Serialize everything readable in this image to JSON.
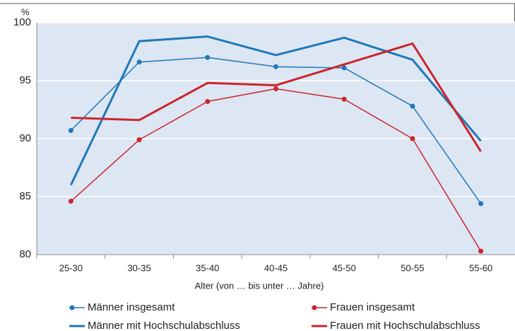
{
  "chart_data": {
    "type": "line",
    "y_unit_label": "%",
    "x_label": "Alter (von … bis unter … Jahre)",
    "categories": [
      "25-30",
      "30-35",
      "35-40",
      "40-45",
      "45-50",
      "50-55",
      "55-60"
    ],
    "series": [
      {
        "name": "Männer insgesamt",
        "color": "#1f78b8",
        "markers": true,
        "values": [
          90.7,
          96.6,
          97.0,
          96.2,
          96.1,
          92.8,
          84.4
        ]
      },
      {
        "name": "Frauen insgesamt",
        "color": "#c9262d",
        "markers": true,
        "values": [
          84.6,
          89.9,
          93.2,
          94.3,
          93.4,
          90.0,
          80.3
        ]
      },
      {
        "name": "Männer mit Hochschulabschluss",
        "color": "#1f78b8",
        "markers": false,
        "values": [
          86.0,
          98.4,
          98.8,
          97.2,
          98.7,
          96.8,
          89.8
        ]
      },
      {
        "name": "Frauen mit Hochschulabschluss",
        "color": "#c9262d",
        "markers": false,
        "values": [
          91.8,
          91.6,
          94.8,
          94.6,
          96.4,
          98.2,
          88.9
        ]
      }
    ],
    "ylim": [
      80,
      100
    ],
    "yticks": [
      80,
      85,
      90,
      95,
      100
    ],
    "grid": true,
    "background": "#dde6f3"
  }
}
